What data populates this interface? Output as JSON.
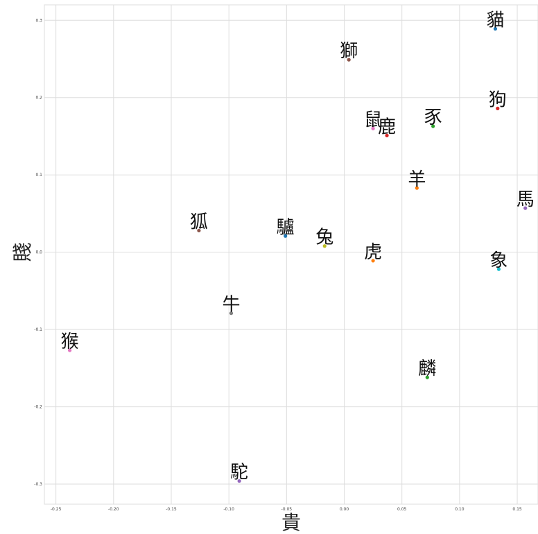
{
  "chart_data": {
    "type": "scatter",
    "title": "",
    "xlabel": "貴",
    "ylabel": "賤",
    "xlim": [
      -0.26,
      0.168
    ],
    "ylim": [
      -0.326,
      0.32
    ],
    "grid": true,
    "x_ticks": [
      -0.25,
      -0.2,
      -0.15,
      -0.1,
      -0.05,
      0.0,
      0.05,
      0.1,
      0.15
    ],
    "x_tick_labels": [
      "-0.25",
      "-0.20",
      "-0.15",
      "-0.10",
      "-0.05",
      "0.00",
      "0.05",
      "0.10",
      "0.15"
    ],
    "y_ticks": [
      0.3,
      0.2,
      0.1,
      0.0,
      -0.1,
      -0.2,
      -0.3
    ],
    "y_tick_labels": [
      "0.3",
      "0.2",
      "0.1",
      "0.0",
      "-0.1",
      "-0.2",
      "-0.3"
    ],
    "points": [
      {
        "label": "貓",
        "x": 0.131,
        "y": 0.289,
        "color": "#1f77b4"
      },
      {
        "label": "獅",
        "x": 0.004,
        "y": 0.249,
        "color": "#8c564b"
      },
      {
        "label": "狗",
        "x": 0.133,
        "y": 0.186,
        "color": "#d62728"
      },
      {
        "label": "鼠",
        "x": 0.025,
        "y": 0.16,
        "color": "#e377c2"
      },
      {
        "label": "鹿",
        "x": 0.037,
        "y": 0.151,
        "color": "#d62728"
      },
      {
        "label": "豕",
        "x": 0.077,
        "y": 0.163,
        "color": "#2ca02c"
      },
      {
        "label": "羊",
        "x": 0.063,
        "y": 0.083,
        "color": "#ff7f0e"
      },
      {
        "label": "馬",
        "x": 0.157,
        "y": 0.057,
        "color": "#9467bd"
      },
      {
        "label": "狐",
        "x": -0.126,
        "y": 0.028,
        "color": "#8c564b"
      },
      {
        "label": "驢",
        "x": -0.051,
        "y": 0.021,
        "color": "#1f77b4"
      },
      {
        "label": "兔",
        "x": -0.017,
        "y": 0.008,
        "color": "#bcbd22"
      },
      {
        "label": "虎",
        "x": 0.025,
        "y": -0.011,
        "color": "#ff7f0e"
      },
      {
        "label": "象",
        "x": 0.134,
        "y": -0.022,
        "color": "#17becf"
      },
      {
        "label": "牛",
        "x": -0.098,
        "y": -0.079,
        "color": "#7f7f7f"
      },
      {
        "label": "猴",
        "x": -0.238,
        "y": -0.127,
        "color": "#e377c2"
      },
      {
        "label": "麟",
        "x": 0.072,
        "y": -0.162,
        "color": "#2ca02c"
      },
      {
        "label": "駝",
        "x": -0.091,
        "y": -0.296,
        "color": "#9467bd"
      }
    ]
  }
}
